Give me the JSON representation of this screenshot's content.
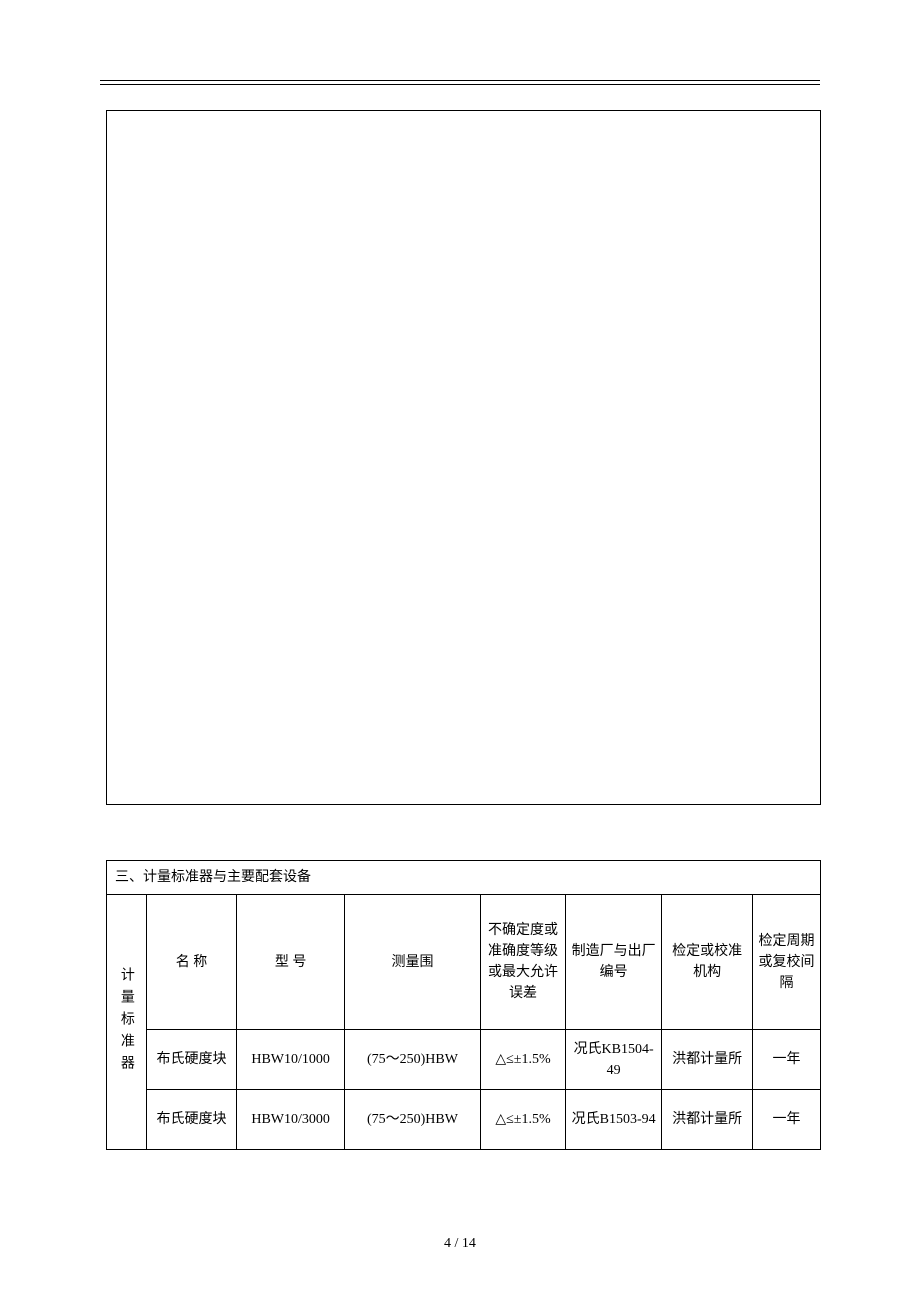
{
  "section": {
    "title": "三、计量标准器与主要配套设备"
  },
  "rowLabel": "计量标准器",
  "headers": {
    "name": "名 称",
    "model": "型 号",
    "range": "测量围",
    "uncertainty": "不确定度或准确度等级或最大允许误差",
    "manufacturer": "制造厂与出厂编号",
    "institution": "检定或校准机构",
    "cycle": "检定周期或复校间隔"
  },
  "rows": [
    {
      "name": "布氏硬度块",
      "model": "HBW10/1000",
      "range": "(75～250)HBW",
      "uncertainty": "△≤±1.5%",
      "manufacturer": "况氏KB1504-49",
      "institution": "洪都计量所",
      "cycle": "一年"
    },
    {
      "name": "布氏硬度块",
      "model": "HBW10/3000",
      "range": "(75～250)HBW",
      "uncertainty": "△≤±1.5%",
      "manufacturer": "况氏B1503-94",
      "institution": "洪都计量所",
      "cycle": "一年"
    }
  ],
  "pageNumber": "4 / 14"
}
